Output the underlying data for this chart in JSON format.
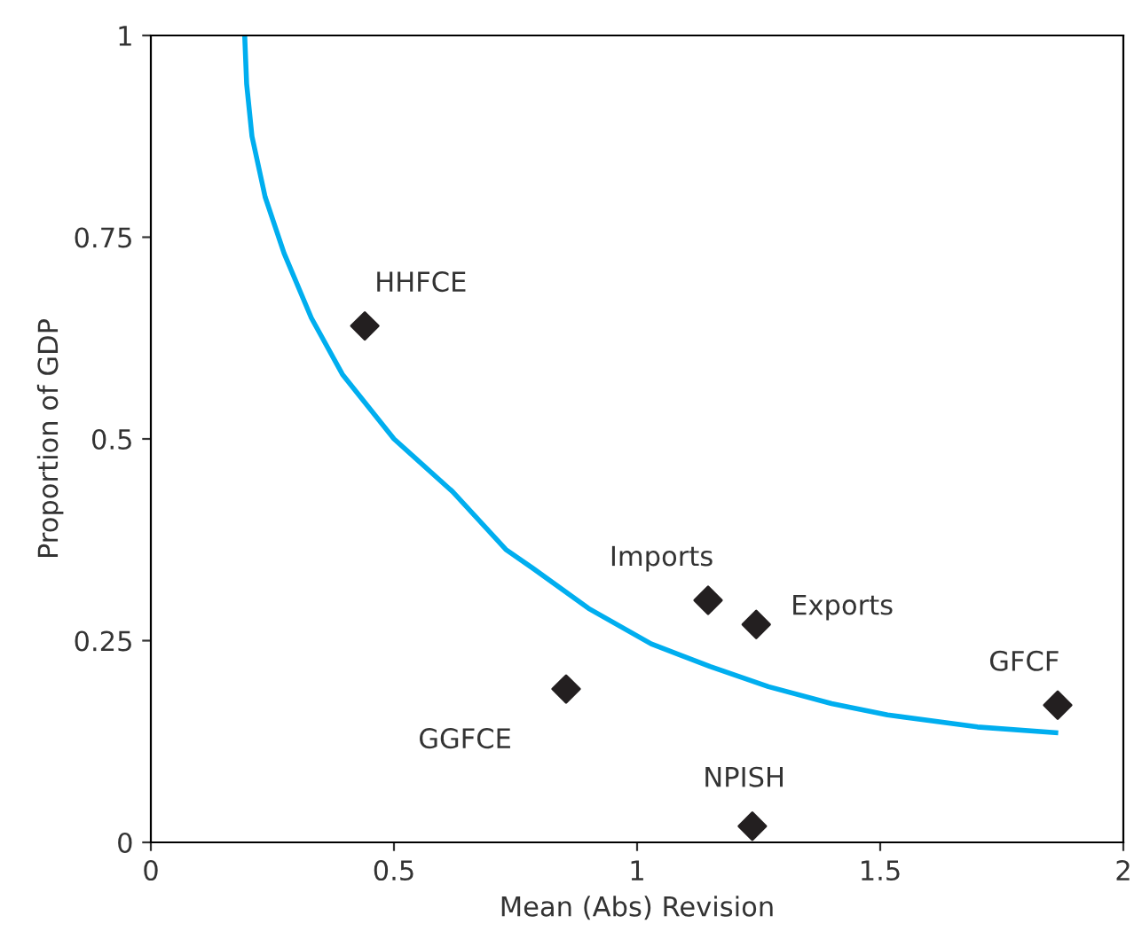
{
  "chart_data": {
    "type": "scatter",
    "xlabel": "Mean (Abs) Revision",
    "ylabel": "Proportion of GDP",
    "xlim": [
      0,
      2
    ],
    "ylim": [
      0,
      1
    ],
    "xticks": [
      0,
      0.5,
      1,
      1.5,
      2
    ],
    "yticks": [
      0,
      0.25,
      0.5,
      0.75,
      1
    ],
    "grid": false,
    "legend": false,
    "marker": "diamond",
    "series": [
      {
        "color": "#231f20",
        "x": [
          0.44,
          1.146,
          1.245,
          0.854,
          1.237,
          1.865
        ],
        "values": [
          0.64,
          0.3,
          0.27,
          0.19,
          0.02,
          0.17
        ]
      },
      {
        "type": "line",
        "color": "#00aeef",
        "marker": "none",
        "x": [
          0.193,
          0.197,
          0.208,
          0.235,
          0.274,
          0.33,
          0.394,
          0.5,
          0.62,
          0.73,
          0.785,
          0.9,
          1.029,
          1.15,
          1.27,
          1.4,
          1.515,
          1.7,
          1.861
        ],
        "values": [
          1.0,
          0.94,
          0.875,
          0.8,
          0.73,
          0.65,
          0.58,
          0.5,
          0.435,
          0.363,
          0.34,
          0.29,
          0.246,
          0.218,
          0.193,
          0.172,
          0.158,
          0.143,
          0.136
        ]
      }
    ],
    "annotations": [
      {
        "text": "HHFCE",
        "x": 0.44,
        "y": 0.64
      },
      {
        "text": "Imports",
        "x": 1.146,
        "y": 0.3
      },
      {
        "text": "Exports",
        "x": 1.245,
        "y": 0.27
      },
      {
        "text": "GGFCE",
        "x": 0.854,
        "y": 0.19
      },
      {
        "text": "NPISH",
        "x": 1.237,
        "y": 0.02
      },
      {
        "text": "GFCF",
        "x": 1.865,
        "y": 0.17
      }
    ]
  }
}
